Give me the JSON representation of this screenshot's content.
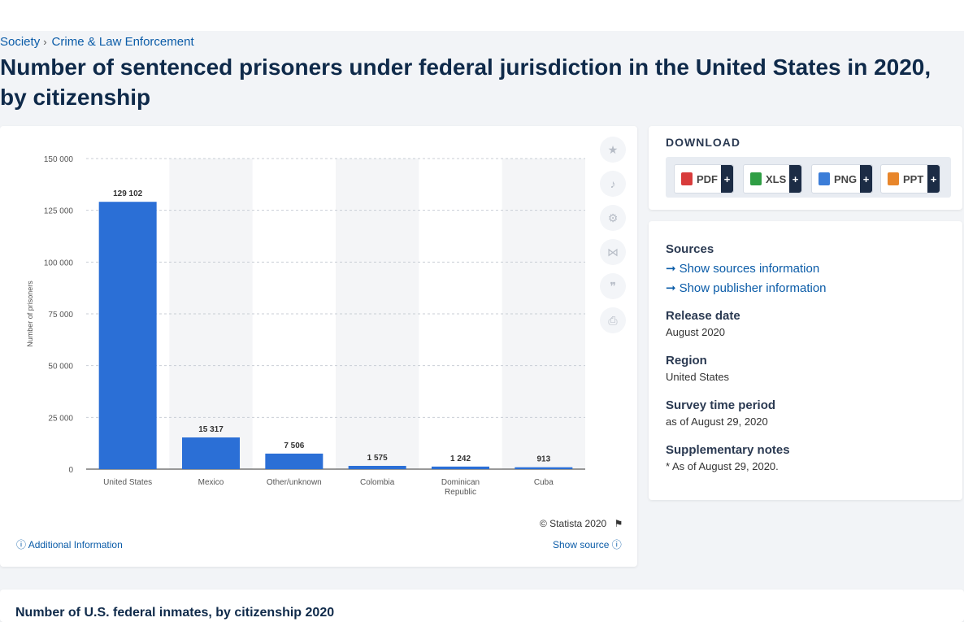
{
  "breadcrumb": {
    "parent": "Society",
    "current": "Crime & Law Enforcement"
  },
  "page_title": "Number of sentenced prisoners under federal jurisdiction in the United States in 2020, by citizenship",
  "chart_data": {
    "type": "bar",
    "categories": [
      "United States",
      "Mexico",
      "Other/unknown",
      "Colombia",
      "Dominican Republic",
      "Cuba"
    ],
    "values": [
      129102,
      15317,
      7506,
      1575,
      1242,
      913
    ],
    "value_labels": [
      "129 102",
      "15 317",
      "7 506",
      "1 575",
      "1 242",
      "913"
    ],
    "ylabel": "Number of prisoners",
    "ylim": [
      0,
      150000
    ],
    "yticks": [
      0,
      25000,
      50000,
      75000,
      100000,
      125000,
      150000
    ],
    "ytick_labels": [
      "0",
      "25 000",
      "50 000",
      "75 000",
      "100 000",
      "125 000",
      "150 000"
    ],
    "grid": true,
    "bar_color": "#2b6fd6"
  },
  "chart_footer": {
    "credit": "© Statista 2020",
    "additional_info": "Additional Information",
    "show_source": "Show source"
  },
  "toolbar": {
    "icons": [
      "star-icon",
      "bell-icon",
      "gear-icon",
      "share-icon",
      "quote-icon",
      "print-icon"
    ]
  },
  "download": {
    "title": "DOWNLOAD",
    "buttons": [
      {
        "label": "PDF",
        "color": "#d83b3b"
      },
      {
        "label": "XLS",
        "color": "#2f9e44"
      },
      {
        "label": "PNG",
        "color": "#3b7dd8"
      },
      {
        "label": "PPT",
        "color": "#e8862b"
      }
    ],
    "plus": "+"
  },
  "info": {
    "sources_heading": "Sources",
    "show_sources": "Show sources information",
    "show_publisher": "Show publisher information",
    "release_date_label": "Release date",
    "release_date": "August 2020",
    "region_label": "Region",
    "region": "United States",
    "survey_label": "Survey time period",
    "survey": "as of August 29, 2020",
    "notes_label": "Supplementary notes",
    "notes": "* As of August 29, 2020."
  },
  "bottom_title": "Number of U.S. federal inmates, by citizenship 2020"
}
